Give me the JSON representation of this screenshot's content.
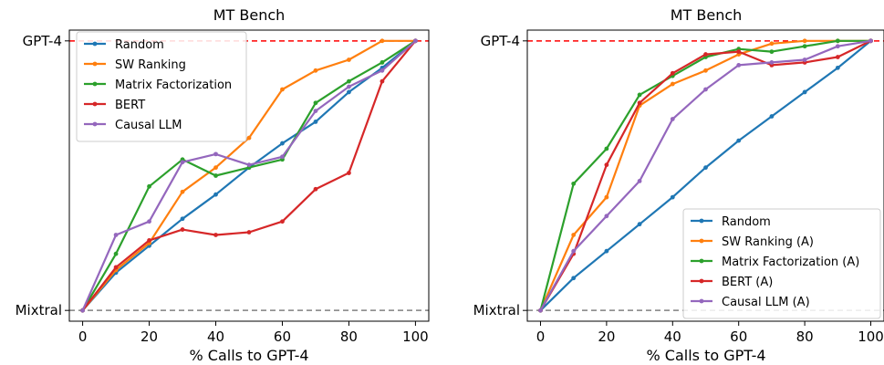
{
  "chart_data": [
    {
      "type": "line",
      "title": "MT Bench",
      "xlabel": "% Calls to GPT-4",
      "ylabel": "",
      "xlim": [
        -4,
        104
      ],
      "ylim": [
        -0.04,
        1.04
      ],
      "xticks": [
        0,
        20,
        40,
        60,
        80,
        100
      ],
      "yticks": [
        {
          "value": 0,
          "label": "Mixtral"
        },
        {
          "value": 1,
          "label": "GPT-4"
        }
      ],
      "reference_lines": [
        {
          "y": 1,
          "label": "GPT-4",
          "color": "#ff0000",
          "style": "dashed"
        },
        {
          "y": 0,
          "label": "Mixtral",
          "color": "#808080",
          "style": "dashed"
        }
      ],
      "grid": false,
      "legend_position": "top-left",
      "x": [
        0,
        10,
        20,
        30,
        40,
        50,
        60,
        70,
        80,
        90,
        100
      ],
      "series": [
        {
          "name": "Random",
          "color": "#1f77b4",
          "values": [
            0,
            0.14,
            0.24,
            0.34,
            0.43,
            0.53,
            0.62,
            0.7,
            0.81,
            0.9,
            1.0
          ]
        },
        {
          "name": "SW Ranking",
          "color": "#ff7f0e",
          "values": [
            0,
            0.15,
            0.25,
            0.44,
            0.53,
            0.64,
            0.82,
            0.89,
            0.93,
            1.0,
            1.0
          ]
        },
        {
          "name": "Matrix Factorization",
          "color": "#2ca02c",
          "values": [
            0,
            0.21,
            0.46,
            0.56,
            0.5,
            0.53,
            0.56,
            0.77,
            0.85,
            0.92,
            1.0
          ]
        },
        {
          "name": "BERT",
          "color": "#d62728",
          "values": [
            0,
            0.16,
            0.26,
            0.3,
            0.28,
            0.29,
            0.33,
            0.45,
            0.51,
            0.85,
            1.0
          ]
        },
        {
          "name": "Causal LLM",
          "color": "#9467bd",
          "values": [
            0,
            0.28,
            0.33,
            0.55,
            0.58,
            0.54,
            0.57,
            0.74,
            0.83,
            0.89,
            1.0
          ]
        }
      ]
    },
    {
      "type": "line",
      "title": "MT Bench",
      "xlabel": "% Calls to GPT-4",
      "ylabel": "",
      "xlim": [
        -4,
        104
      ],
      "ylim": [
        -0.04,
        1.04
      ],
      "xticks": [
        0,
        20,
        40,
        60,
        80,
        100
      ],
      "yticks": [
        {
          "value": 0,
          "label": "Mixtral"
        },
        {
          "value": 1,
          "label": "GPT-4"
        }
      ],
      "reference_lines": [
        {
          "y": 1,
          "label": "GPT-4",
          "color": "#ff0000",
          "style": "dashed"
        },
        {
          "y": 0,
          "label": "Mixtral",
          "color": "#808080",
          "style": "dashed"
        }
      ],
      "grid": false,
      "legend_position": "bottom-right",
      "x": [
        0,
        10,
        20,
        30,
        40,
        50,
        60,
        70,
        80,
        90,
        100
      ],
      "series": [
        {
          "name": "Random",
          "color": "#1f77b4",
          "values": [
            0,
            0.12,
            0.22,
            0.32,
            0.42,
            0.53,
            0.63,
            0.72,
            0.81,
            0.9,
            1.0
          ]
        },
        {
          "name": "SW Ranking (A)",
          "color": "#ff7f0e",
          "values": [
            0,
            0.28,
            0.42,
            0.76,
            0.84,
            0.89,
            0.95,
            0.99,
            1.0,
            1.0,
            1.0
          ]
        },
        {
          "name": "Matrix Factorization (A)",
          "color": "#2ca02c",
          "values": [
            0,
            0.47,
            0.6,
            0.8,
            0.87,
            0.94,
            0.97,
            0.96,
            0.98,
            1.0,
            1.0
          ]
        },
        {
          "name": "BERT (A)",
          "color": "#d62728",
          "values": [
            0,
            0.21,
            0.54,
            0.77,
            0.88,
            0.95,
            0.96,
            0.91,
            0.92,
            0.94,
            1.0
          ]
        },
        {
          "name": "Causal LLM (A)",
          "color": "#9467bd",
          "values": [
            0,
            0.22,
            0.35,
            0.48,
            0.71,
            0.82,
            0.91,
            0.92,
            0.93,
            0.98,
            1.0
          ]
        }
      ]
    }
  ]
}
